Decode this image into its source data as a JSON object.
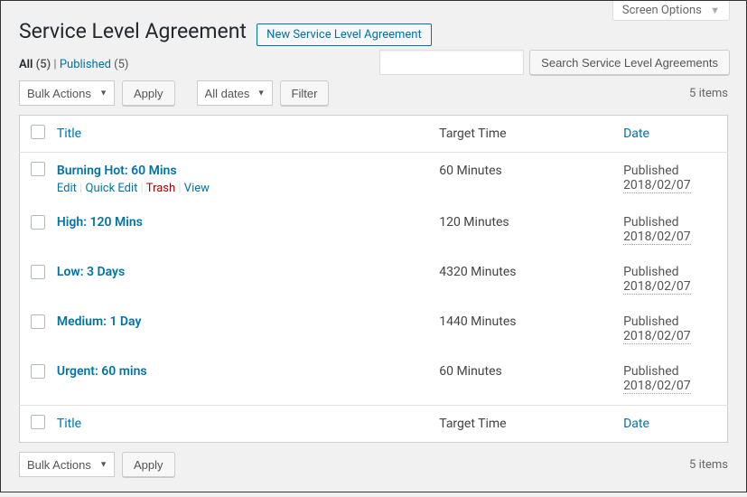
{
  "screen_options_label": "Screen Options",
  "page_title": "Service Level Agreement",
  "new_button": "New Service Level Agreement",
  "filters": {
    "all_label": "All",
    "all_count": "(5)",
    "published_label": "Published",
    "published_count": "(5)"
  },
  "search": {
    "placeholder": "",
    "button": "Search Service Level Agreements"
  },
  "bulk": {
    "label": "Bulk Actions",
    "apply": "Apply"
  },
  "date_filter": {
    "label": "All dates",
    "filter_btn": "Filter"
  },
  "items_count": "5 items",
  "columns": {
    "title": "Title",
    "target": "Target Time",
    "date": "Date"
  },
  "row_actions": {
    "edit": "Edit",
    "quick": "Quick Edit",
    "trash": "Trash",
    "view": "View"
  },
  "rows": [
    {
      "title": "Burning Hot: 60 Mins",
      "target": "60 Minutes",
      "status": "Published",
      "date": "2018/02/07",
      "show_actions": true
    },
    {
      "title": "High: 120 Mins",
      "target": "120 Minutes",
      "status": "Published",
      "date": "2018/02/07",
      "show_actions": false
    },
    {
      "title": "Low: 3 Days",
      "target": "4320 Minutes",
      "status": "Published",
      "date": "2018/02/07",
      "show_actions": false
    },
    {
      "title": "Medium: 1 Day",
      "target": "1440 Minutes",
      "status": "Published",
      "date": "2018/02/07",
      "show_actions": false
    },
    {
      "title": "Urgent: 60 mins",
      "target": "60 Minutes",
      "status": "Published",
      "date": "2018/02/07",
      "show_actions": false
    }
  ]
}
